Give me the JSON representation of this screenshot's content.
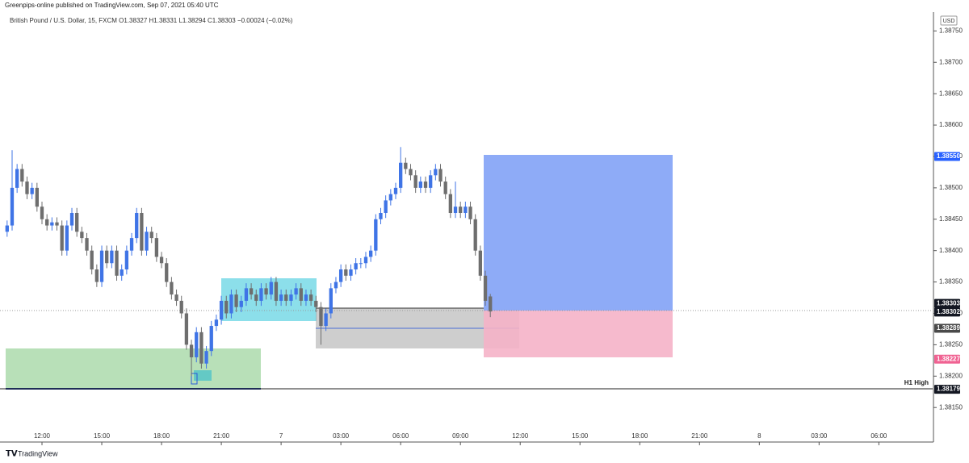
{
  "header": {
    "published": "Greenpips-online published on TradingView.com, Sep 07, 2021 05:40 UTC",
    "legend": "British Pound / U.S. Dollar, 15, FXCM O1.38327 H1.38331 L1.38294 C1.38303 −0.00024 (−0.02%)",
    "currency": "USD",
    "footer": "TradingView"
  },
  "chart_data": {
    "type": "candlestick",
    "up_color": "#3f74e6",
    "down_color": "#6e6e6e",
    "xlim": [
      -8.43,
      178.8
    ],
    "ylim": [
      1.38095,
      1.3878
    ],
    "xticks": [
      {
        "value": 0,
        "label": "12:00"
      },
      {
        "value": 12,
        "label": "15:00"
      },
      {
        "value": 24,
        "label": "18:00"
      },
      {
        "value": 36,
        "label": "21:00"
      },
      {
        "value": 48,
        "label": "7"
      },
      {
        "value": 60,
        "label": "03:00"
      },
      {
        "value": 72,
        "label": "06:00"
      },
      {
        "value": 84,
        "label": "09:00"
      },
      {
        "value": 96,
        "label": "12:00"
      },
      {
        "value": 108,
        "label": "15:00"
      },
      {
        "value": 120,
        "label": "18:00"
      },
      {
        "value": 132,
        "label": "21:00"
      },
      {
        "value": 144,
        "label": "8"
      },
      {
        "value": 156,
        "label": "03:00"
      },
      {
        "value": 168,
        "label": "06:00"
      }
    ],
    "yticks": [
      {
        "value": 1.3875,
        "label": "1.38750"
      },
      {
        "value": 1.387,
        "label": "1.38700"
      },
      {
        "value": 1.3865,
        "label": "1.38650"
      },
      {
        "value": 1.386,
        "label": "1.38600"
      },
      {
        "value": 1.3855,
        "label": "1.38550"
      },
      {
        "value": 1.385,
        "label": "1.38500"
      },
      {
        "value": 1.3845,
        "label": "1.38450"
      },
      {
        "value": 1.384,
        "label": "1.38400"
      },
      {
        "value": 1.3835,
        "label": "1.38350"
      },
      {
        "value": 1.383,
        "label": "1.38300"
      },
      {
        "value": 1.3825,
        "label": "1.38250"
      },
      {
        "value": 1.382,
        "label": "1.38200"
      },
      {
        "value": 1.3815,
        "label": "1.38150"
      }
    ],
    "price_labels": [
      {
        "value": 1.3855,
        "label": "1.38550",
        "color": "#2962ff"
      },
      {
        "value": 1.38303,
        "label": "1.38303",
        "color": "#131722"
      },
      {
        "value": 1.38302,
        "label": "1.38302",
        "color": "#131722"
      },
      {
        "value": 1.38289,
        "label": "1.38289",
        "color": "#4a4a4a"
      },
      {
        "value": 1.38227,
        "label": "1.38227",
        "color": "#f06292"
      },
      {
        "value": 1.38179,
        "label": "1.38179",
        "color": "#131722"
      }
    ],
    "annotation": "H1 High",
    "x": [
      -7,
      -6,
      -5,
      -4,
      -3,
      -2,
      -1,
      0,
      1,
      2,
      3,
      4,
      5,
      6,
      7,
      8,
      9,
      10,
      11,
      12,
      13,
      14,
      15,
      16,
      17,
      18,
      19,
      20,
      21,
      22,
      23,
      24,
      25,
      26,
      27,
      28,
      29,
      30,
      31,
      32,
      33,
      34,
      35,
      36,
      37,
      38,
      39,
      40,
      41,
      42,
      43,
      44,
      45,
      46,
      47,
      48,
      49,
      50,
      51,
      52,
      53,
      54,
      55,
      56,
      57,
      58,
      59,
      60,
      61,
      62,
      63,
      64,
      65,
      66,
      67,
      68,
      69,
      70,
      71,
      72,
      73,
      74,
      75,
      76,
      77,
      78,
      79,
      80,
      81,
      82,
      83,
      84,
      85,
      86,
      87,
      88,
      89,
      90
    ],
    "open": [
      1.3843,
      1.3844,
      1.385,
      1.3853,
      1.3851,
      1.3849,
      1.385,
      1.3847,
      1.3845,
      1.3844,
      1.38445,
      1.3844,
      1.384,
      1.3844,
      1.3846,
      1.3843,
      1.3842,
      1.384,
      1.3837,
      1.3835,
      1.384,
      1.3838,
      1.384,
      1.3836,
      1.3837,
      1.384,
      1.3842,
      1.3846,
      1.384,
      1.3843,
      1.3842,
      1.3839,
      1.3838,
      1.3835,
      1.3833,
      1.3832,
      1.383,
      1.3825,
      1.3823,
      1.3827,
      1.3822,
      1.3824,
      1.3828,
      1.3829,
      1.3832,
      1.383,
      1.3833,
      1.3831,
      1.3832,
      1.3834,
      1.3833,
      1.3832,
      1.3834,
      1.3833,
      1.3835,
      1.3832,
      1.3833,
      1.3832,
      1.3833,
      1.3834,
      1.3832,
      1.3833,
      1.3832,
      1.3831,
      1.3828,
      1.383,
      1.3834,
      1.3835,
      1.3837,
      1.3836,
      1.3837,
      1.3838,
      1.3838,
      1.3839,
      1.384,
      1.3845,
      1.3846,
      1.3848,
      1.3849,
      1.385,
      1.3854,
      1.3853,
      1.3852,
      1.385,
      1.3851,
      1.385,
      1.3852,
      1.3853,
      1.3851,
      1.3849,
      1.3846,
      1.3847,
      1.3846,
      1.3847,
      1.3845,
      1.384,
      1.3836,
      1.38327
    ],
    "high": [
      1.38448,
      1.3856,
      1.38538,
      1.38538,
      1.38518,
      1.38508,
      1.38508,
      1.38478,
      1.38458,
      1.38453,
      1.38453,
      1.38448,
      1.38448,
      1.38468,
      1.38468,
      1.38438,
      1.38428,
      1.38408,
      1.38378,
      1.38408,
      1.38408,
      1.38408,
      1.38408,
      1.38378,
      1.38408,
      1.38428,
      1.38468,
      1.38468,
      1.38438,
      1.38438,
      1.38428,
      1.38398,
      1.38388,
      1.38358,
      1.38338,
      1.38328,
      1.38308,
      1.38258,
      1.38278,
      1.38278,
      1.38248,
      1.38288,
      1.38298,
      1.38328,
      1.38328,
      1.38338,
      1.38338,
      1.38328,
      1.38348,
      1.38348,
      1.38338,
      1.38348,
      1.38348,
      1.38358,
      1.38358,
      1.38338,
      1.38338,
      1.38338,
      1.38348,
      1.38348,
      1.38338,
      1.38338,
      1.38328,
      1.38318,
      1.38308,
      1.38348,
      1.38358,
      1.38378,
      1.38378,
      1.38378,
      1.38388,
      1.38388,
      1.38398,
      1.38408,
      1.38458,
      1.38468,
      1.38488,
      1.38498,
      1.38508,
      1.38565,
      1.38548,
      1.38538,
      1.38528,
      1.38518,
      1.38518,
      1.38528,
      1.38538,
      1.38538,
      1.38518,
      1.38498,
      1.3851,
      1.38478,
      1.38478,
      1.38478,
      1.38458,
      1.38408,
      1.38368,
      1.38331
    ],
    "low": [
      1.38422,
      1.38432,
      1.38492,
      1.38502,
      1.38482,
      1.38482,
      1.38462,
      1.38442,
      1.38432,
      1.38432,
      1.38432,
      1.38392,
      1.38392,
      1.38432,
      1.38422,
      1.38412,
      1.38392,
      1.38362,
      1.38342,
      1.38342,
      1.38372,
      1.38372,
      1.38352,
      1.38352,
      1.38362,
      1.38392,
      1.38412,
      1.38392,
      1.38392,
      1.38412,
      1.38382,
      1.38372,
      1.38342,
      1.38322,
      1.38312,
      1.38292,
      1.38242,
      1.382,
      1.38222,
      1.38212,
      1.38212,
      1.38232,
      1.38272,
      1.38282,
      1.38292,
      1.38292,
      1.38302,
      1.38302,
      1.38312,
      1.38322,
      1.38312,
      1.38312,
      1.38322,
      1.38322,
      1.38312,
      1.38312,
      1.38312,
      1.38312,
      1.38322,
      1.38312,
      1.38312,
      1.38312,
      1.38302,
      1.3825,
      1.38272,
      1.38292,
      1.38332,
      1.38342,
      1.38352,
      1.38352,
      1.38362,
      1.38372,
      1.38372,
      1.38382,
      1.38392,
      1.38442,
      1.38452,
      1.38472,
      1.38482,
      1.38492,
      1.38522,
      1.38512,
      1.38492,
      1.38492,
      1.38492,
      1.38492,
      1.38512,
      1.38502,
      1.38482,
      1.38452,
      1.38452,
      1.38452,
      1.38452,
      1.38442,
      1.38392,
      1.38352,
      1.38312,
      1.38294
    ],
    "close": [
      1.3844,
      1.385,
      1.3853,
      1.3851,
      1.3849,
      1.385,
      1.3847,
      1.3845,
      1.3844,
      1.38445,
      1.3844,
      1.384,
      1.3844,
      1.3846,
      1.3843,
      1.3842,
      1.384,
      1.3837,
      1.3835,
      1.384,
      1.3838,
      1.384,
      1.3836,
      1.3837,
      1.384,
      1.3842,
      1.3846,
      1.384,
      1.3843,
      1.3842,
      1.3839,
      1.3838,
      1.3835,
      1.3833,
      1.3832,
      1.383,
      1.3825,
      1.3823,
      1.3827,
      1.3822,
      1.3824,
      1.3828,
      1.3829,
      1.3832,
      1.383,
      1.3833,
      1.3831,
      1.3832,
      1.3834,
      1.3833,
      1.3832,
      1.3834,
      1.3833,
      1.3835,
      1.3832,
      1.3833,
      1.3832,
      1.3833,
      1.3834,
      1.3832,
      1.3833,
      1.3832,
      1.3831,
      1.3828,
      1.383,
      1.3834,
      1.3835,
      1.3837,
      1.3836,
      1.3837,
      1.3838,
      1.3838,
      1.3839,
      1.384,
      1.3845,
      1.3846,
      1.3848,
      1.3849,
      1.385,
      1.3854,
      1.3853,
      1.3852,
      1.385,
      1.3851,
      1.385,
      1.3852,
      1.3853,
      1.3851,
      1.3849,
      1.3846,
      1.3847,
      1.3846,
      1.3847,
      1.3845,
      1.384,
      1.3836,
      1.3832,
      1.38303
    ]
  }
}
